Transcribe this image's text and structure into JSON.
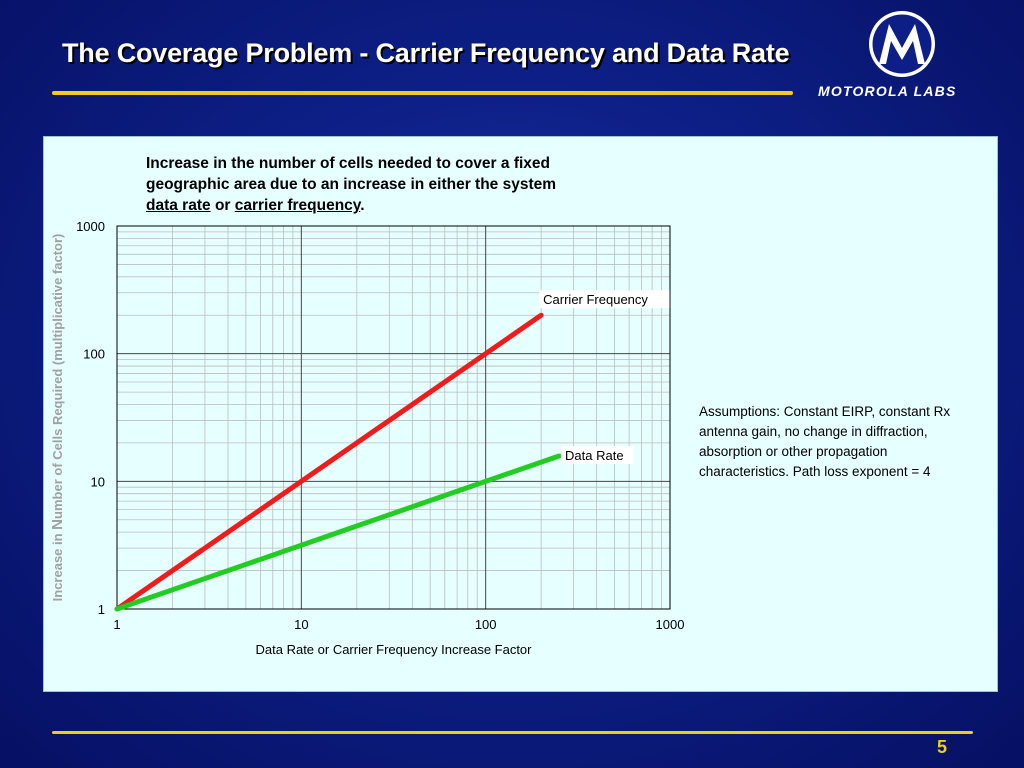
{
  "slide": {
    "title": "The Coverage Problem - Carrier Frequency and Data Rate",
    "logo_text": "MOTOROLA LABS",
    "page_number": "5",
    "colors": {
      "gold": "#f2cc1a",
      "panel": "#e6ffff",
      "carrier_line": "#ee1c1c",
      "data_rate_line": "#22cc22"
    }
  },
  "chart_heading": {
    "line_1": "Increase in the number of cells needed to cover a fixed",
    "line_2": "geographic area due to an increase in either the system",
    "term_a": "data rate",
    "connector": "or",
    "term_b": "carrier frequency",
    "period": "."
  },
  "assumptions": {
    "line_1": "Assumptions: Constant EIRP, constant Rx",
    "line_2": "antenna gain, no change in diffraction,",
    "line_3": "absorption or other propagation",
    "line_4": "characteristics.  Path loss exponent = 4"
  },
  "chart_data": {
    "type": "line",
    "xlabel": "Data Rate or Carrier Frequency Increase Factor",
    "ylabel_parts": [
      "Increase in ",
      "N",
      "umber of Cells Required (multiplicative factor)"
    ],
    "xscale": "log",
    "yscale": "log",
    "xlim": [
      1,
      1000
    ],
    "ylim": [
      1,
      1000
    ],
    "x_ticks": [
      "1",
      "10",
      "100",
      "1000"
    ],
    "y_ticks": [
      "1",
      "10",
      "100",
      "1000"
    ],
    "grid": true,
    "series": [
      {
        "name": "Carrier Frequency",
        "color": "#ee1c1c",
        "x": [
          1,
          10,
          100,
          200
        ],
        "y": [
          1,
          10,
          100,
          200
        ]
      },
      {
        "name": "Data Rate",
        "color": "#22cc22",
        "x": [
          1,
          10,
          100,
          250
        ],
        "y": [
          1,
          3.16,
          10,
          15.8
        ]
      }
    ]
  }
}
